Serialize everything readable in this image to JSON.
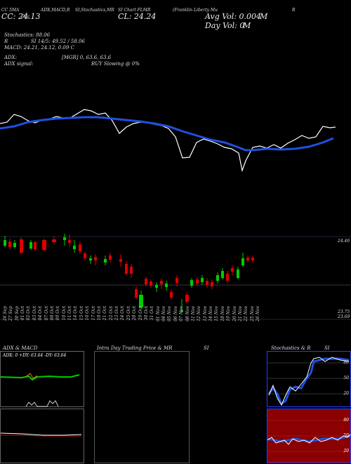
{
  "header": {
    "top_labels": [
      "CC 5MA",
      "ADX,MACD,R",
      "SI,Stochastics,MR",
      "SI Chart FLMB",
      "(Franklin Liberty Mu",
      "R"
    ],
    "line2_left": "CC: 24.13",
    "line2_center": "CL: 24.24",
    "line2_day": "Day",
    "avg_vol": "Avg Vol: 0.004",
    "avg_vol_unit": "M",
    "day_vol": "Day Vol: 0",
    "day_vol_unit": "M",
    "stochastics": "Stochastics: 88.06",
    "rsi_label": "R",
    "rsi": "SI 14/5: 49.52 / 58.06",
    "macd": "MACD: 24.21, 24.12, 0.09 C",
    "adx": "ADX:",
    "mgr": "[MGR] 0, 63.6, 63.6",
    "adx_signal": "ADX signal:",
    "buy": "BUY Slowing @ 0%"
  },
  "price_labels": {
    "top": "24.46",
    "bottom1": "23.75",
    "bottom2": "23.69"
  },
  "dates": [
    "26 Sep",
    "27 Sep",
    "30 Sep",
    "01 Oct",
    "02 Oct",
    "03 Oct",
    "04 Oct",
    "07 Oct",
    "08 Oct",
    "09 Oct",
    "10 Oct",
    "11 Oct",
    "14 Oct",
    "15 Oct",
    "16 Oct",
    "17 Oct",
    "18 Oct",
    "21 Oct",
    "22 Oct",
    "23 Oct",
    "24 Oct",
    "25 Oct",
    "28 Oct",
    "29 Oct",
    "30 Oct",
    "31 Oct",
    "01 Nov",
    "04 Nov",
    "05 Nov",
    "06 Nov",
    "07 Nov",
    "08 Nov",
    "11 Nov",
    "12 Nov",
    "13 Nov",
    "14 Nov",
    "15 Nov",
    "18 Nov",
    "19 Nov",
    "20 Nov",
    "21 Nov",
    "22 Nov",
    "25 Nov",
    "26 Nov"
  ],
  "panels": {
    "adx_title": "ADX  & MACD",
    "adx_values": "ADX: 0  +DY: 63.64  -DY: 63.64",
    "intraday_title": "Intra  Day Trading Price  & MR",
    "intraday_si": "SI",
    "stoch_title": "Stochastics & R",
    "stoch_si": "SI",
    "stoch_levels": [
      "80",
      "50",
      "20"
    ],
    "rsi_levels": [
      "80",
      "50",
      "20"
    ]
  },
  "colors": {
    "up": "#00cc00",
    "down": "#dd0000",
    "ma": "#1e50e0",
    "stoch_bg": "#000",
    "rsi_bg": "#8b0000"
  }
}
